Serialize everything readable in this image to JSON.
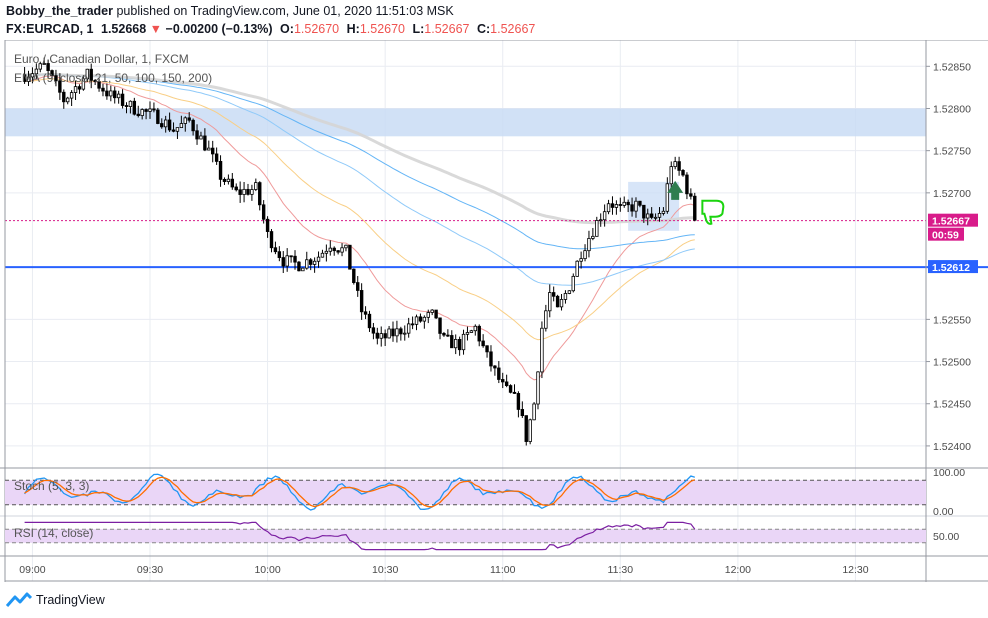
{
  "header": {
    "author": "Bobby_the_trader",
    "published_text": "published on TradingView.com, June 01, 2020 11:51:03 MSK",
    "symbol": "FX:EURCAD, 1",
    "last_price": "1.52668",
    "change_arrow": "▼",
    "change": "−0.00200 (−0.13%)",
    "o_label": "O:",
    "o_value": "1.52670",
    "h_label": "H:",
    "h_value": "1.52670",
    "l_label": "L:",
    "l_value": "1.52667",
    "c_label": "C:",
    "c_value": "1.52667"
  },
  "footer": {
    "brand": "TradingView",
    "logo_icon": "tradingview-logo-icon"
  },
  "colors": {
    "up_candle": "#000000",
    "down_candle": "#000000",
    "ema_21": "#ef9a9a",
    "ema_50": "#f9cf86",
    "ema_100": "#90caf9",
    "ema_150": "#64b5f6",
    "ema_200": "#d5d5d5",
    "zone_fill": "#c9dcf5",
    "support_line": "#2962ff",
    "price_tag": "#d81b8a",
    "stoch_k": "#2196f3",
    "stoch_d": "#ff6d00",
    "rsi": "#7b1fa2",
    "osc_fill": "#ead6f7",
    "thumbs_down": "#1bd40f",
    "arrow_up": "#2e7d4f"
  },
  "chart_data": [
    {
      "type": "candlestick",
      "title": "Euro / Canadian Dollar, 1, FXCM",
      "indicator_label": "EMA (9, close, 21, 50, 100, 150, 200)",
      "x_ticks": [
        "09:00",
        "09:30",
        "10:00",
        "10:30",
        "11:00",
        "11:30",
        "12:00",
        "12:30"
      ],
      "y_ticks": [
        "1.52850",
        "1.52800",
        "1.52750",
        "1.52700",
        "1.52667",
        "1.52612",
        "1.52550",
        "1.52500",
        "1.52450",
        "1.52400"
      ],
      "ylim": [
        1.52375,
        1.5288
      ],
      "current_price_tag": "1.52667",
      "countdown_tag": "00:59",
      "support_level_tag": "1.52612",
      "resistance_zone": [
        1.52767,
        1.528
      ],
      "support_level": 1.52612,
      "consolidation_zone": {
        "y": [
          1.52655,
          1.52713
        ],
        "x": [
          "11:32",
          "11:45"
        ]
      },
      "price_path": [
        [
          "08:58",
          1.5284
        ],
        [
          "09:03",
          1.5285
        ],
        [
          "09:08",
          1.5281
        ],
        [
          "09:14",
          1.5284
        ],
        [
          "09:20",
          1.52815
        ],
        [
          "09:26",
          1.528
        ],
        [
          "09:32",
          1.5279
        ],
        [
          "09:36",
          1.52775
        ],
        [
          "09:40",
          1.52785
        ],
        [
          "09:45",
          1.5275
        ],
        [
          "09:48",
          1.5272
        ],
        [
          "09:52",
          1.527
        ],
        [
          "09:57",
          1.52705
        ],
        [
          "10:00",
          1.5265
        ],
        [
          "10:04",
          1.5262
        ],
        [
          "10:08",
          1.52615
        ],
        [
          "10:13",
          1.52625
        ],
        [
          "10:16",
          1.5264
        ],
        [
          "10:20",
          1.5263
        ],
        [
          "10:24",
          1.5256
        ],
        [
          "10:28",
          1.52525
        ],
        [
          "10:33",
          1.52535
        ],
        [
          "10:37",
          1.52545
        ],
        [
          "10:42",
          1.52555
        ],
        [
          "10:45",
          1.52525
        ],
        [
          "10:49",
          1.5252
        ],
        [
          "10:53",
          1.5254
        ],
        [
          "10:56",
          1.52505
        ],
        [
          "11:00",
          1.5247
        ],
        [
          "11:04",
          1.5245
        ],
        [
          "11:06",
          1.5241
        ],
        [
          "11:08",
          1.5245
        ],
        [
          "11:10",
          1.5254
        ],
        [
          "11:12",
          1.5258
        ],
        [
          "11:14",
          1.5256
        ],
        [
          "11:17",
          1.5259
        ],
        [
          "11:20",
          1.5263
        ],
        [
          "11:24",
          1.52665
        ],
        [
          "11:27",
          1.5269
        ],
        [
          "11:30",
          1.5268
        ],
        [
          "11:34",
          1.52685
        ],
        [
          "11:38",
          1.52665
        ],
        [
          "11:41",
          1.5268
        ],
        [
          "11:43",
          1.52735
        ],
        [
          "11:46",
          1.5272
        ],
        [
          "11:48",
          1.5269
        ],
        [
          "11:49",
          1.5267
        ]
      ]
    },
    {
      "type": "line",
      "title": "Stoch (5, 3, 3)",
      "y_ticks": [
        "100.00",
        "0.00"
      ],
      "ylim": [
        0,
        100
      ],
      "band": [
        80,
        20
      ]
    },
    {
      "type": "line",
      "title": "RSI (14, close)",
      "y_ticks": [
        "50.00"
      ],
      "ylim": [
        0,
        100
      ],
      "band": [
        70,
        30
      ]
    }
  ]
}
